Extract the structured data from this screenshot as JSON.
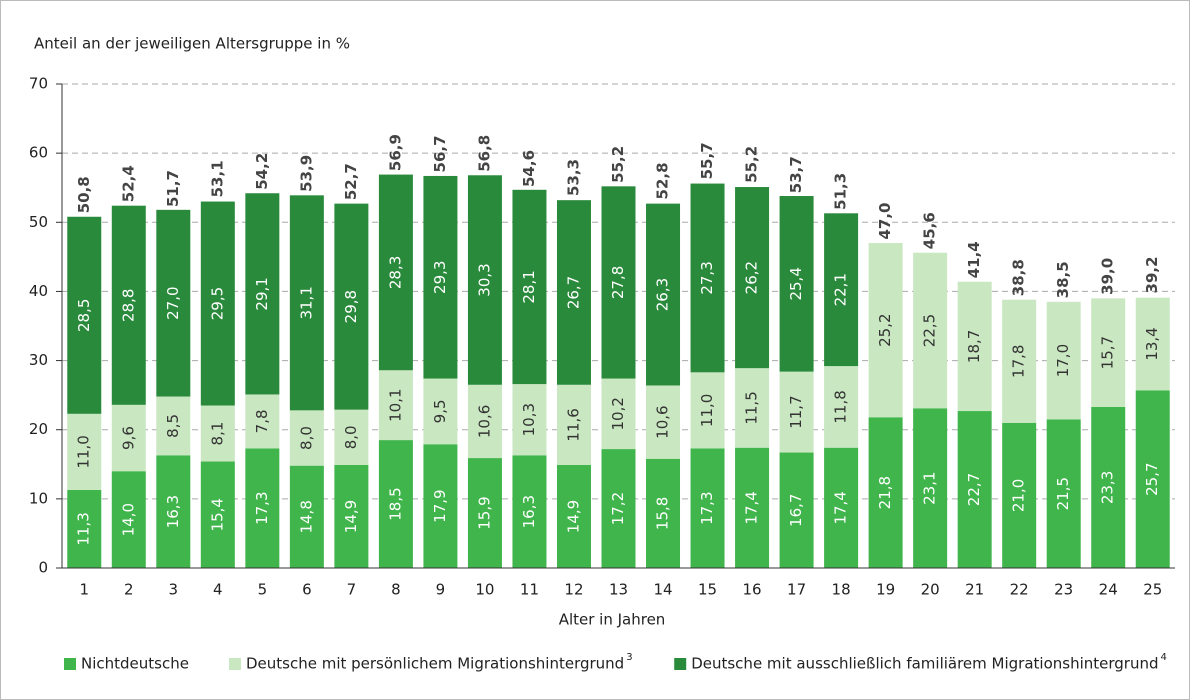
{
  "chart_data": {
    "type": "stacked_bar",
    "y_label": "Anteil an der jeweiligen Altersgruppe in %",
    "x_label": "Alter in Jahren",
    "categories": [
      "1",
      "2",
      "3",
      "4",
      "5",
      "6",
      "7",
      "8",
      "9",
      "10",
      "11",
      "12",
      "13",
      "14",
      "15",
      "16",
      "17",
      "18",
      "19",
      "20",
      "21",
      "22",
      "23",
      "24",
      "25"
    ],
    "ylim": [
      0,
      70
    ],
    "yticks": [
      0,
      10,
      20,
      30,
      40,
      50,
      60,
      70
    ],
    "grid": true,
    "series": [
      {
        "name": "Nichtdeutsche",
        "color": "#3fb54b",
        "values": [
          11.3,
          14.0,
          16.3,
          15.4,
          17.3,
          14.8,
          14.9,
          18.5,
          17.9,
          15.9,
          16.3,
          14.9,
          17.2,
          15.8,
          17.3,
          17.4,
          16.7,
          17.4,
          21.8,
          23.1,
          22.7,
          21.0,
          21.5,
          23.3,
          25.7
        ],
        "value_labels": [
          "11,3",
          "14,0",
          "16,3",
          "15,4",
          "17,3",
          "14,8",
          "14,9",
          "18,5",
          "17,9",
          "15,9",
          "16,3",
          "14,9",
          "17,2",
          "15,8",
          "17,3",
          "17,4",
          "16,7",
          "17,4",
          "21,8",
          "23,1",
          "22,7",
          "21,0",
          "21,5",
          "23,3",
          "25,7"
        ]
      },
      {
        "name": "Deutsche mit persönlichem Migrationshintergrund",
        "note_ref": "3",
        "color": "#c9e7c1",
        "values": [
          11.0,
          9.6,
          8.5,
          8.1,
          7.8,
          8.0,
          8.0,
          10.1,
          9.5,
          10.6,
          10.3,
          11.6,
          10.2,
          10.6,
          11.0,
          11.5,
          11.7,
          11.8,
          25.2,
          22.5,
          18.7,
          17.8,
          17.0,
          15.7,
          13.4
        ],
        "value_labels": [
          "11,0",
          "9,6",
          "8,5",
          "8,1",
          "7,8",
          "8,0",
          "8,0",
          "10,1",
          "9,5",
          "10,6",
          "10,3",
          "11,6",
          "10,2",
          "10,6",
          "11,0",
          "11,5",
          "11,7",
          "11,8",
          "25,2",
          "22,5",
          "18,7",
          "17,8",
          "17,0",
          "15,7",
          "13,4"
        ]
      },
      {
        "name": "Deutsche mit ausschließlich familiärem Migrationshintergrund",
        "note_ref": "4",
        "color": "#2a8a3b",
        "values": [
          28.5,
          28.8,
          27.0,
          29.5,
          29.1,
          31.1,
          29.8,
          28.3,
          29.3,
          30.3,
          28.1,
          26.7,
          27.8,
          26.3,
          27.3,
          26.2,
          25.4,
          22.1,
          null,
          null,
          null,
          null,
          null,
          null,
          null
        ],
        "value_labels": [
          "28,5",
          "28,8",
          "27,0",
          "29,5",
          "29,1",
          "31,1",
          "29,8",
          "28,3",
          "29,3",
          "30,3",
          "28,1",
          "26,7",
          "27,8",
          "26,3",
          "27,3",
          "26,2",
          "25,4",
          "22,1",
          null,
          null,
          null,
          null,
          null,
          null,
          null
        ]
      }
    ],
    "totals": {
      "values": [
        50.8,
        52.4,
        51.7,
        53.1,
        54.2,
        53.9,
        52.7,
        56.9,
        56.7,
        56.8,
        54.6,
        53.3,
        55.2,
        52.8,
        55.7,
        55.2,
        53.7,
        51.3,
        47.0,
        45.6,
        41.4,
        38.8,
        38.5,
        39.0,
        39.2
      ],
      "value_labels": [
        "50,8",
        "52,4",
        "51,7",
        "53,1",
        "54,2",
        "53,9",
        "52,7",
        "56,9",
        "56,7",
        "56,8",
        "54,6",
        "53,3",
        "55,2",
        "52,8",
        "55,7",
        "55,2",
        "53,7",
        "51,3",
        "47,0",
        "45,6",
        "41,4",
        "38,8",
        "38,5",
        "39,0",
        "39,2"
      ]
    }
  }
}
